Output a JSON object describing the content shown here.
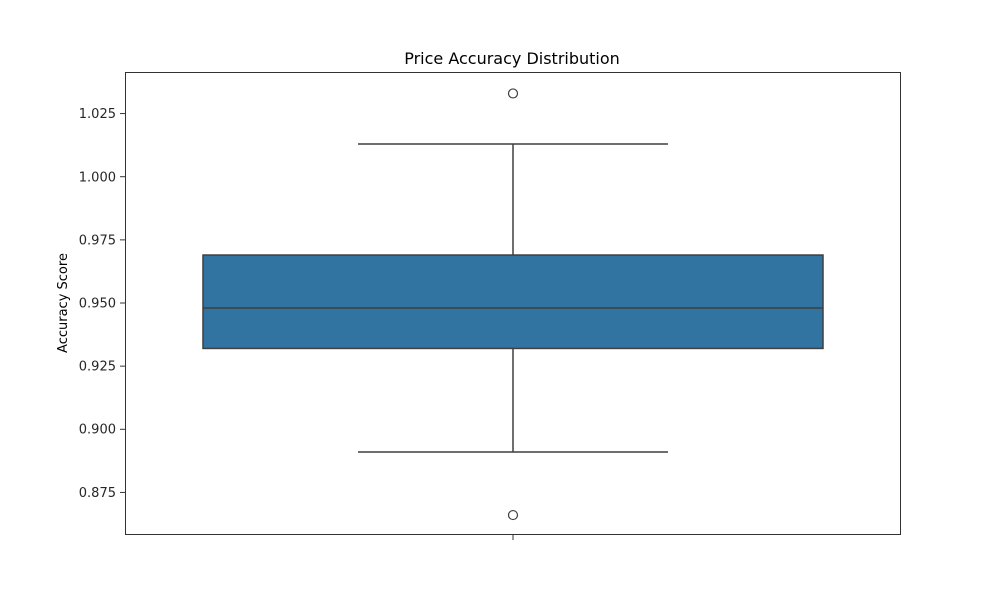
{
  "chart_data": {
    "type": "box",
    "title": "Price Accuracy Distribution",
    "xlabel": "",
    "ylabel": "Accuracy Score",
    "ylim": [
      0.8585,
      1.0415
    ],
    "yticks": [
      0.875,
      0.9,
      0.925,
      0.95,
      0.975,
      1.0,
      1.025
    ],
    "ytick_labels": [
      "0.875",
      "0.900",
      "0.925",
      "0.950",
      "0.975",
      "1.000",
      "1.025"
    ],
    "grid": false,
    "box": {
      "whisker_low": 0.891,
      "q1": 0.932,
      "median": 0.948,
      "q3": 0.969,
      "whisker_high": 1.013,
      "outliers": [
        1.033,
        0.866
      ]
    },
    "colors": {
      "box_fill": "#3274a1",
      "line": "#3f3f3f"
    }
  }
}
